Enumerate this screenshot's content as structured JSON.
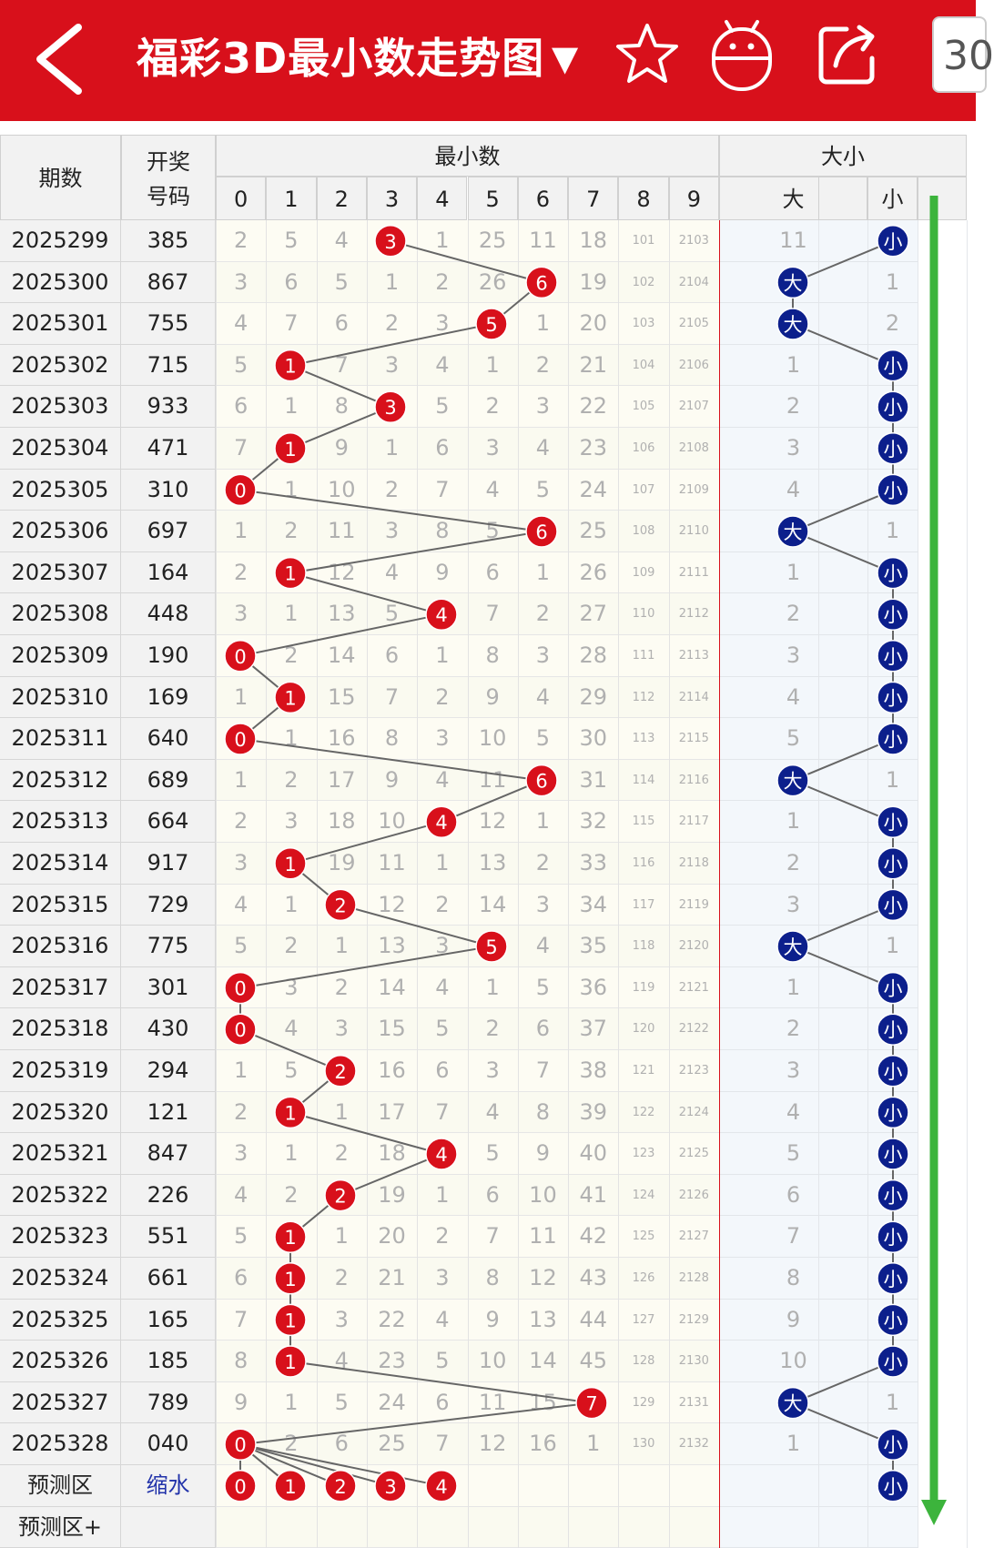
{
  "header": {
    "title": "福彩3D最小数走势图",
    "dropdown_glyph": "▼",
    "badge_text": "30",
    "icons": [
      "back-arrow-icon",
      "star-icon",
      "android-robot-icon",
      "share-icon"
    ]
  },
  "columns": {
    "period": "期数",
    "number_line1": "开奖",
    "number_line2": "号码",
    "group_min": "最小数",
    "group_size": "大小",
    "digits": [
      "0",
      "1",
      "2",
      "3",
      "4",
      "5",
      "6",
      "7",
      "8",
      "9"
    ],
    "big": "大",
    "small": "小"
  },
  "colors": {
    "red_bar": "#d8101b",
    "red_ball": "#d8101b",
    "blue_ball": "#0c1f8c",
    "trend_arrow": "#3cb43c",
    "line": "#666666"
  },
  "rows": [
    {
      "p": "2025299",
      "n": "385",
      "c": [
        "2",
        "5",
        "4",
        "3",
        "1",
        "25",
        "11",
        "18",
        "101",
        "2103"
      ],
      "b": "11",
      "s": "小"
    },
    {
      "p": "2025300",
      "n": "867",
      "c": [
        "3",
        "6",
        "5",
        "1",
        "2",
        "26",
        "6",
        "19",
        "102",
        "2104"
      ],
      "b": "大",
      "s": "1"
    },
    {
      "p": "2025301",
      "n": "755",
      "c": [
        "4",
        "7",
        "6",
        "2",
        "3",
        "5",
        "1",
        "20",
        "103",
        "2105"
      ],
      "b": "大",
      "s": "2"
    },
    {
      "p": "2025302",
      "n": "715",
      "c": [
        "5",
        "1",
        "7",
        "3",
        "4",
        "1",
        "2",
        "21",
        "104",
        "2106"
      ],
      "b": "1",
      "s": "小"
    },
    {
      "p": "2025303",
      "n": "933",
      "c": [
        "6",
        "1",
        "8",
        "3",
        "5",
        "2",
        "3",
        "22",
        "105",
        "2107"
      ],
      "b": "2",
      "s": "小"
    },
    {
      "p": "2025304",
      "n": "471",
      "c": [
        "7",
        "1",
        "9",
        "1",
        "6",
        "3",
        "4",
        "23",
        "106",
        "2108"
      ],
      "b": "3",
      "s": "小"
    },
    {
      "p": "2025305",
      "n": "310",
      "c": [
        "0",
        "1",
        "10",
        "2",
        "7",
        "4",
        "5",
        "24",
        "107",
        "2109"
      ],
      "b": "4",
      "s": "小"
    },
    {
      "p": "2025306",
      "n": "697",
      "c": [
        "1",
        "2",
        "11",
        "3",
        "8",
        "5",
        "6",
        "25",
        "108",
        "2110"
      ],
      "b": "大",
      "s": "1"
    },
    {
      "p": "2025307",
      "n": "164",
      "c": [
        "2",
        "1",
        "12",
        "4",
        "9",
        "6",
        "1",
        "26",
        "109",
        "2111"
      ],
      "b": "1",
      "s": "小"
    },
    {
      "p": "2025308",
      "n": "448",
      "c": [
        "3",
        "1",
        "13",
        "5",
        "4",
        "7",
        "2",
        "27",
        "110",
        "2112"
      ],
      "b": "2",
      "s": "小"
    },
    {
      "p": "2025309",
      "n": "190",
      "c": [
        "0",
        "2",
        "14",
        "6",
        "1",
        "8",
        "3",
        "28",
        "111",
        "2113"
      ],
      "b": "3",
      "s": "小"
    },
    {
      "p": "2025310",
      "n": "169",
      "c": [
        "1",
        "1",
        "15",
        "7",
        "2",
        "9",
        "4",
        "29",
        "112",
        "2114"
      ],
      "b": "4",
      "s": "小"
    },
    {
      "p": "2025311",
      "n": "640",
      "c": [
        "0",
        "1",
        "16",
        "8",
        "3",
        "10",
        "5",
        "30",
        "113",
        "2115"
      ],
      "b": "5",
      "s": "小"
    },
    {
      "p": "2025312",
      "n": "689",
      "c": [
        "1",
        "2",
        "17",
        "9",
        "4",
        "11",
        "6",
        "31",
        "114",
        "2116"
      ],
      "b": "大",
      "s": "1"
    },
    {
      "p": "2025313",
      "n": "664",
      "c": [
        "2",
        "3",
        "18",
        "10",
        "4",
        "12",
        "1",
        "32",
        "115",
        "2117"
      ],
      "b": "1",
      "s": "小"
    },
    {
      "p": "2025314",
      "n": "917",
      "c": [
        "3",
        "1",
        "19",
        "11",
        "1",
        "13",
        "2",
        "33",
        "116",
        "2118"
      ],
      "b": "2",
      "s": "小"
    },
    {
      "p": "2025315",
      "n": "729",
      "c": [
        "4",
        "1",
        "2",
        "12",
        "2",
        "14",
        "3",
        "34",
        "117",
        "2119"
      ],
      "b": "3",
      "s": "小"
    },
    {
      "p": "2025316",
      "n": "775",
      "c": [
        "5",
        "2",
        "1",
        "13",
        "3",
        "5",
        "4",
        "35",
        "118",
        "2120"
      ],
      "b": "大",
      "s": "1"
    },
    {
      "p": "2025317",
      "n": "301",
      "c": [
        "0",
        "3",
        "2",
        "14",
        "4",
        "1",
        "5",
        "36",
        "119",
        "2121"
      ],
      "b": "1",
      "s": "小"
    },
    {
      "p": "2025318",
      "n": "430",
      "c": [
        "0",
        "4",
        "3",
        "15",
        "5",
        "2",
        "6",
        "37",
        "120",
        "2122"
      ],
      "b": "2",
      "s": "小"
    },
    {
      "p": "2025319",
      "n": "294",
      "c": [
        "1",
        "5",
        "2",
        "16",
        "6",
        "3",
        "7",
        "38",
        "121",
        "2123"
      ],
      "b": "3",
      "s": "小"
    },
    {
      "p": "2025320",
      "n": "121",
      "c": [
        "2",
        "1",
        "1",
        "17",
        "7",
        "4",
        "8",
        "39",
        "122",
        "2124"
      ],
      "b": "4",
      "s": "小"
    },
    {
      "p": "2025321",
      "n": "847",
      "c": [
        "3",
        "1",
        "2",
        "18",
        "4",
        "5",
        "9",
        "40",
        "123",
        "2125"
      ],
      "b": "5",
      "s": "小"
    },
    {
      "p": "2025322",
      "n": "226",
      "c": [
        "4",
        "2",
        "2",
        "19",
        "1",
        "6",
        "10",
        "41",
        "124",
        "2126"
      ],
      "b": "6",
      "s": "小"
    },
    {
      "p": "2025323",
      "n": "551",
      "c": [
        "5",
        "1",
        "1",
        "20",
        "2",
        "7",
        "11",
        "42",
        "125",
        "2127"
      ],
      "b": "7",
      "s": "小"
    },
    {
      "p": "2025324",
      "n": "661",
      "c": [
        "6",
        "1",
        "2",
        "21",
        "3",
        "8",
        "12",
        "43",
        "126",
        "2128"
      ],
      "b": "8",
      "s": "小"
    },
    {
      "p": "2025325",
      "n": "165",
      "c": [
        "7",
        "1",
        "3",
        "22",
        "4",
        "9",
        "13",
        "44",
        "127",
        "2129"
      ],
      "b": "9",
      "s": "小"
    },
    {
      "p": "2025326",
      "n": "185",
      "c": [
        "8",
        "1",
        "4",
        "23",
        "5",
        "10",
        "14",
        "45",
        "128",
        "2130"
      ],
      "b": "10",
      "s": "小"
    },
    {
      "p": "2025327",
      "n": "789",
      "c": [
        "9",
        "1",
        "5",
        "24",
        "6",
        "11",
        "15",
        "7",
        "129",
        "2131"
      ],
      "b": "大",
      "s": "1"
    },
    {
      "p": "2025328",
      "n": "040",
      "c": [
        "0",
        "2",
        "6",
        "25",
        "7",
        "12",
        "16",
        "1",
        "130",
        "2132"
      ],
      "b": "1",
      "s": "小"
    }
  ],
  "hits": [
    3,
    6,
    5,
    1,
    3,
    1,
    0,
    6,
    1,
    4,
    0,
    1,
    0,
    6,
    4,
    1,
    2,
    5,
    0,
    0,
    2,
    1,
    4,
    2,
    1,
    1,
    1,
    1,
    7,
    0
  ],
  "predict": {
    "label": "预测区",
    "value": "缩水",
    "balls": [
      "0",
      "1",
      "2",
      "3",
      "4"
    ],
    "size": "小"
  },
  "predict_plus": {
    "label": "预测区+"
  }
}
